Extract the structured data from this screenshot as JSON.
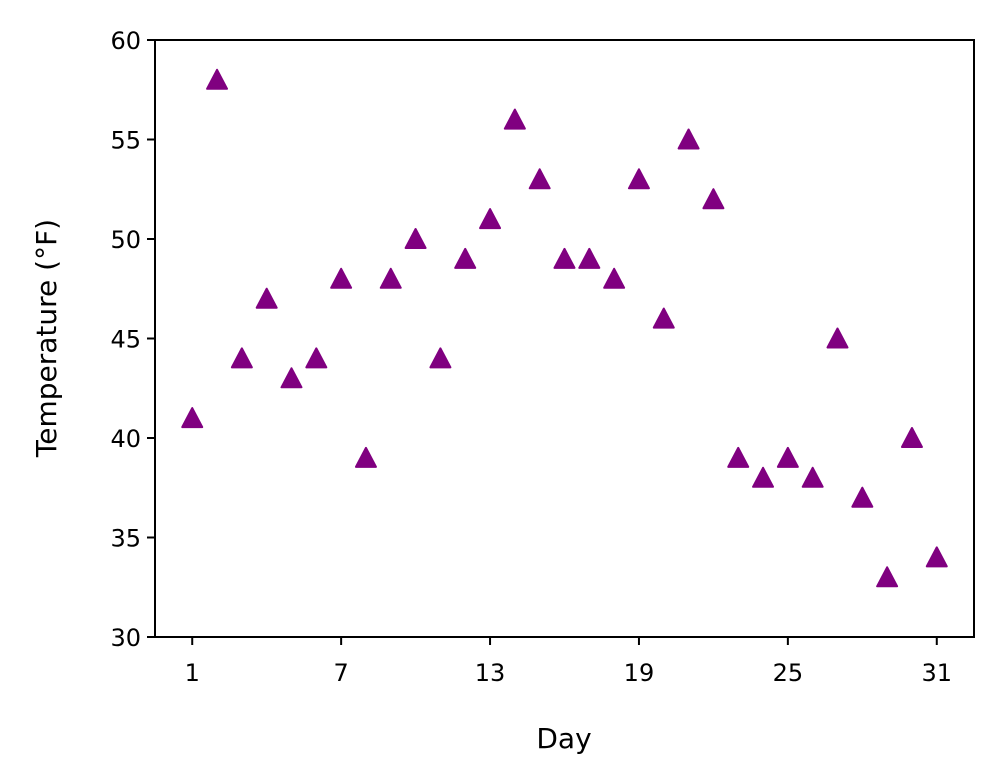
{
  "chart_data": {
    "type": "scatter",
    "title": "",
    "xlabel": "Day",
    "ylabel": "Temperature (°F)",
    "xlim": [
      -0.5,
      32.5
    ],
    "ylim": [
      30,
      60
    ],
    "xticks": [
      1,
      7,
      13,
      19,
      25,
      31
    ],
    "yticks": [
      30,
      35,
      40,
      45,
      50,
      55,
      60
    ],
    "grid": false,
    "legend": "none",
    "marker": "triangle-up",
    "color": "#800080",
    "series": [
      {
        "x": [
          1,
          2,
          3,
          4,
          5,
          6,
          7,
          8,
          9,
          10,
          11,
          12,
          13,
          14,
          15,
          16,
          17,
          18,
          19,
          20,
          21,
          22,
          23,
          24,
          25,
          26,
          27,
          28,
          29,
          30,
          31
        ],
        "y": [
          41,
          58,
          44,
          47,
          43,
          44,
          48,
          39,
          48,
          50,
          44,
          49,
          51,
          56,
          53,
          49,
          49,
          48,
          53,
          46,
          55,
          52,
          39,
          38,
          39,
          38,
          45,
          37,
          33,
          40,
          34
        ]
      }
    ]
  }
}
